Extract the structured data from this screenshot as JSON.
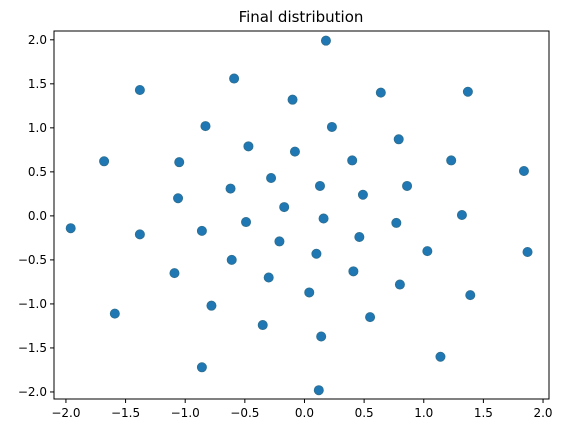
{
  "chart_data": {
    "type": "scatter",
    "title": "Final distribution",
    "xlabel": "",
    "ylabel": "",
    "xlim": [
      -2.1,
      2.05
    ],
    "ylim": [
      -2.08,
      2.1
    ],
    "x_ticks": [
      -2.0,
      -1.5,
      -1.0,
      -0.5,
      0.0,
      0.5,
      1.0,
      1.5,
      2.0
    ],
    "x_tick_labels": [
      "−2.0",
      "−1.5",
      "−1.0",
      "−0.5",
      "0.0",
      "0.5",
      "1.0",
      "1.5",
      "2.0"
    ],
    "y_ticks": [
      -2.0,
      -1.5,
      -1.0,
      -0.5,
      0.0,
      0.5,
      1.0,
      1.5,
      2.0
    ],
    "y_tick_labels": [
      "−2.0",
      "−1.5",
      "−1.0",
      "−0.5",
      "0.0",
      "0.5",
      "1.0",
      "1.5",
      "2.0"
    ],
    "grid": false,
    "colors": {
      "marker": "#1f77b4",
      "marker_edge": "#2f6f8f",
      "frame": "#000000",
      "background": "#ffffff"
    },
    "series": [
      {
        "points": [
          {
            "x": 0.18,
            "y": 1.99
          },
          {
            "x": -0.59,
            "y": 1.56
          },
          {
            "x": -1.38,
            "y": 1.43
          },
          {
            "x": -0.1,
            "y": 1.32
          },
          {
            "x": 0.64,
            "y": 1.4
          },
          {
            "x": 1.37,
            "y": 1.41
          },
          {
            "x": -0.83,
            "y": 1.02
          },
          {
            "x": 0.23,
            "y": 1.01
          },
          {
            "x": 0.79,
            "y": 0.87
          },
          {
            "x": -0.47,
            "y": 0.79
          },
          {
            "x": -0.08,
            "y": 0.73
          },
          {
            "x": -1.68,
            "y": 0.62
          },
          {
            "x": -1.05,
            "y": 0.61
          },
          {
            "x": 0.4,
            "y": 0.63
          },
          {
            "x": 1.23,
            "y": 0.63
          },
          {
            "x": 1.84,
            "y": 0.51
          },
          {
            "x": -0.28,
            "y": 0.43
          },
          {
            "x": -0.62,
            "y": 0.31
          },
          {
            "x": 0.13,
            "y": 0.34
          },
          {
            "x": 0.86,
            "y": 0.34
          },
          {
            "x": -1.06,
            "y": 0.2
          },
          {
            "x": 0.49,
            "y": 0.24
          },
          {
            "x": -0.17,
            "y": 0.1
          },
          {
            "x": 1.32,
            "y": 0.01
          },
          {
            "x": -1.96,
            "y": -0.14
          },
          {
            "x": -0.49,
            "y": -0.07
          },
          {
            "x": 0.16,
            "y": -0.03
          },
          {
            "x": 0.77,
            "y": -0.08
          },
          {
            "x": -1.38,
            "y": -0.21
          },
          {
            "x": -0.86,
            "y": -0.17
          },
          {
            "x": -0.21,
            "y": -0.29
          },
          {
            "x": 0.46,
            "y": -0.24
          },
          {
            "x": 1.03,
            "y": -0.4
          },
          {
            "x": 1.87,
            "y": -0.41
          },
          {
            "x": 0.1,
            "y": -0.43
          },
          {
            "x": -0.61,
            "y": -0.5
          },
          {
            "x": -1.09,
            "y": -0.65
          },
          {
            "x": 0.41,
            "y": -0.63
          },
          {
            "x": -0.3,
            "y": -0.7
          },
          {
            "x": 0.8,
            "y": -0.78
          },
          {
            "x": 0.04,
            "y": -0.87
          },
          {
            "x": 1.39,
            "y": -0.9
          },
          {
            "x": -0.78,
            "y": -1.02
          },
          {
            "x": -1.59,
            "y": -1.11
          },
          {
            "x": 0.55,
            "y": -1.15
          },
          {
            "x": -0.35,
            "y": -1.24
          },
          {
            "x": 0.14,
            "y": -1.37
          },
          {
            "x": 1.14,
            "y": -1.6
          },
          {
            "x": -0.86,
            "y": -1.72
          },
          {
            "x": 0.12,
            "y": -1.98
          }
        ]
      }
    ]
  }
}
